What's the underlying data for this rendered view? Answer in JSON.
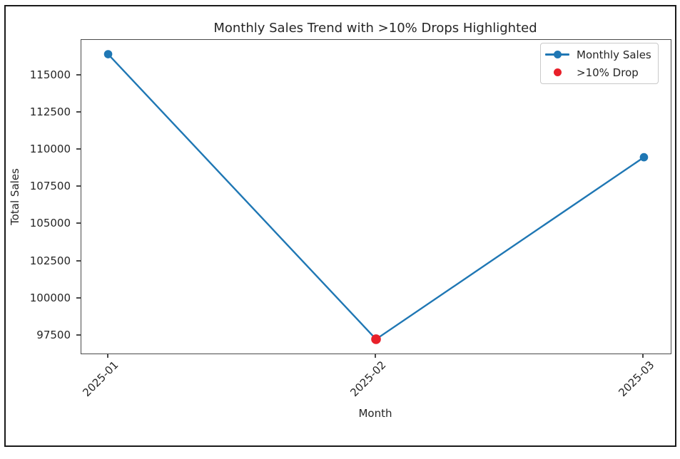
{
  "figure": {
    "background": "#ffffff",
    "border_color": "#1a1a1a"
  },
  "chart_data": {
    "type": "line",
    "title": "Monthly Sales Trend with >10% Drops Highlighted",
    "xlabel": "Month",
    "ylabel": "Total Sales",
    "categories": [
      "2025-01",
      "2025-02",
      "2025-03"
    ],
    "series": [
      {
        "name": "Monthly Sales",
        "color": "#1f77b4",
        "values": [
          116430,
          97260,
          109500
        ],
        "marker": "circle",
        "marker_radius": 5.8,
        "line_width": 2.4
      }
    ],
    "highlight_points": [
      {
        "name": ">10% Drop",
        "color": "#e8202a",
        "category": "2025-02",
        "category_index": 1,
        "value": 97260,
        "marker_radius": 6.8
      }
    ],
    "yticks": [
      97500,
      100000,
      102500,
      105000,
      107500,
      110000,
      112500,
      115000
    ],
    "ylim": [
      96300,
      117390
    ],
    "x_margin": 0.05,
    "xtick_rotation_deg": 45,
    "grid": false,
    "axis_color": "#4a4a4a",
    "text_color": "#262626",
    "legend": {
      "position": "upper-right",
      "entries": [
        {
          "label": "Monthly Sales",
          "marker": "line-dot",
          "color": "#1f77b4"
        },
        {
          "label": ">10% Drop",
          "marker": "dot",
          "color": "#e8202a"
        }
      ]
    }
  }
}
